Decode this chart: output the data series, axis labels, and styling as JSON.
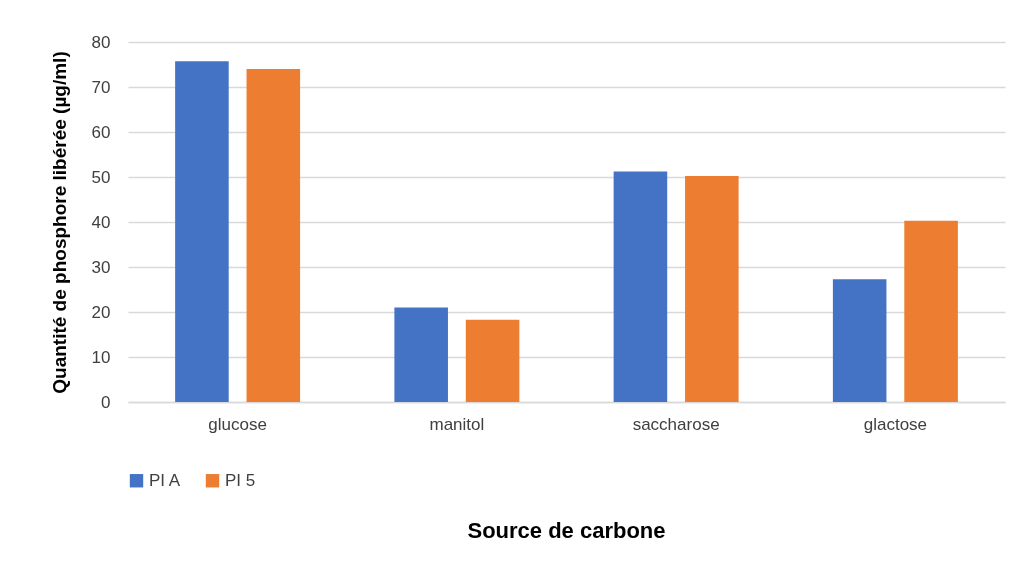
{
  "chart_data": {
    "type": "bar",
    "xlabel": "Source de carbone",
    "ylabel": "Quantité de phosphore libérée  (µg/ml)",
    "categories": [
      "glucose",
      "manitol",
      "saccharose",
      "glactose"
    ],
    "series": [
      {
        "name": "PI A",
        "color": "#4472c4",
        "values": [
          75.7,
          21.0,
          51.2,
          27.3
        ]
      },
      {
        "name": "PI 5",
        "color": "#ed7d31",
        "values": [
          74.0,
          18.3,
          50.2,
          40.3
        ]
      }
    ],
    "ylim": [
      0,
      80
    ],
    "yticks": [
      0,
      10,
      20,
      30,
      40,
      50,
      60,
      70,
      80
    ],
    "grid": "y",
    "legend": "bottom"
  }
}
